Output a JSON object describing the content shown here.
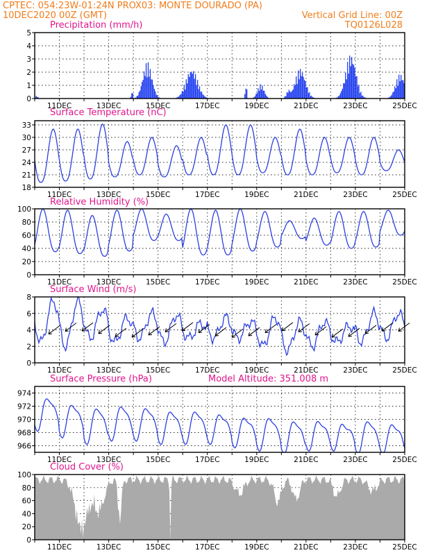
{
  "header": {
    "line1_left": "CPTEC:   054:23W-01:24N   PROX03: MONTE DOURADO (PA)",
    "line2_left": "10DEC2020 00Z (GMT)",
    "line2_right": "Vertical Grid Line: 00Z",
    "line3_right": "TQ0126L028"
  },
  "x_ticks": [
    "11DEC",
    "13DEC",
    "15DEC",
    "17DEC",
    "19DEC",
    "21DEC",
    "23DEC",
    "25DEC"
  ],
  "chart_data": [
    {
      "type": "bar",
      "title": "Precipitation (mm/h)",
      "ylim": [
        0,
        5
      ],
      "yticks": [
        "0",
        "1",
        "2",
        "3",
        "4",
        "5"
      ],
      "color": "#1f3df0",
      "x_day_range": [
        10,
        25
      ],
      "bursts": [
        {
          "center": 10.05,
          "width": 0.12,
          "peak": 0.2
        },
        {
          "center": 13.93,
          "width": 0.06,
          "peak": 0.6
        },
        {
          "center": 14.55,
          "width": 0.35,
          "peak": 2.8
        },
        {
          "center": 16.35,
          "width": 0.45,
          "peak": 2.3
        },
        {
          "center": 18.55,
          "width": 0.06,
          "peak": 1.2
        },
        {
          "center": 19.15,
          "width": 0.25,
          "peak": 1.1
        },
        {
          "center": 20.3,
          "width": 0.2,
          "peak": 0.7
        },
        {
          "center": 20.75,
          "width": 0.4,
          "peak": 2.3
        },
        {
          "center": 22.8,
          "width": 0.4,
          "peak": 3.4
        },
        {
          "center": 24.8,
          "width": 0.35,
          "peak": 1.9
        }
      ]
    },
    {
      "type": "line",
      "title": "Surface Temperature (nC)",
      "ylim": [
        18,
        34
      ],
      "yticks": [
        "18",
        "21",
        "24",
        "27",
        "30",
        "33"
      ],
      "color": "#2b3fe0",
      "x_day_range": [
        10,
        25
      ],
      "daily_max": [
        32.0,
        32.0,
        33.2,
        29.0,
        30.0,
        28.0,
        30.0,
        33.0,
        33.0,
        30.0,
        32.0,
        30.0,
        30.0,
        30.0,
        27.0
      ],
      "daily_min": [
        19.2,
        19.5,
        20.0,
        20.5,
        21.0,
        20.5,
        21.0,
        21.0,
        21.0,
        21.5,
        21.0,
        21.0,
        21.5,
        21.0,
        22.0
      ]
    },
    {
      "type": "line",
      "title": "Relative Humidity (%)",
      "ylim": [
        0,
        100
      ],
      "yticks": [
        "0",
        "20",
        "40",
        "60",
        "80",
        "100"
      ],
      "color": "#2b3fe0",
      "x_day_range": [
        10,
        25
      ],
      "daily_max": [
        100,
        98,
        90,
        98,
        100,
        92,
        100,
        98,
        100,
        96,
        82,
        86,
        96,
        96,
        98
      ],
      "daily_min": [
        35,
        32,
        28,
        36,
        52,
        52,
        30,
        30,
        36,
        42,
        55,
        45,
        40,
        42,
        60
      ]
    },
    {
      "type": "line",
      "title": "Surface Wind (m/s)",
      "ylim": [
        0,
        8
      ],
      "yticks": [
        "0",
        "2",
        "4",
        "6",
        "8"
      ],
      "color": "#2b3fe0",
      "x_day_range": [
        10,
        25
      ],
      "daily_max": [
        7.5,
        7.5,
        6.5,
        5.5,
        6.0,
        5.8,
        4.8,
        5.5,
        5.0,
        5.5,
        5.0,
        5.0,
        4.5,
        6.0,
        6.0
      ],
      "daily_min": [
        2.5,
        2.0,
        3.0,
        2.5,
        3.0,
        2.5,
        3.0,
        3.0,
        3.0,
        2.0,
        1.5,
        2.0,
        2.5,
        2.5,
        3.0
      ],
      "wind_direction_arrows": "northeasterly, pointing toward the southwest"
    },
    {
      "type": "line",
      "title": "Surface Pressure (hPa)",
      "subtitle": "Model Altitude: 351.008 m",
      "ylim": [
        965,
        975
      ],
      "yticks": [
        "966",
        "968",
        "970",
        "972",
        "974"
      ],
      "color": "#2b3fe0",
      "x_day_range": [
        10,
        25
      ],
      "daily_max": [
        973.5,
        972.5,
        972.0,
        972.3,
        972.0,
        971.5,
        971.5,
        971.0,
        970.5,
        970.5,
        970.0,
        970.0,
        969.5,
        970.0,
        969.5
      ],
      "daily_min": [
        969.0,
        968.0,
        967.0,
        967.5,
        967.5,
        967.0,
        967.0,
        967.0,
        966.5,
        966.0,
        965.5,
        966.0,
        966.0,
        965.5,
        965.5
      ]
    },
    {
      "type": "area",
      "title": "Cloud Cover (%)",
      "ylim": [
        0,
        100
      ],
      "yticks": [
        "0",
        "20",
        "40",
        "60",
        "80",
        "100"
      ],
      "color": "#aaaaaa",
      "x_day_range": [
        10,
        25
      ],
      "baseline": 92,
      "dips": [
        {
          "center": 11.9,
          "width": 0.35,
          "depth": 88
        },
        {
          "center": 12.6,
          "width": 0.3,
          "depth": 55
        },
        {
          "center": 13.45,
          "width": 0.1,
          "depth": 70
        },
        {
          "center": 15.5,
          "width": 0.03,
          "depth": 95
        },
        {
          "center": 18.3,
          "width": 0.25,
          "depth": 25
        },
        {
          "center": 19.85,
          "width": 0.2,
          "depth": 40
        },
        {
          "center": 20.6,
          "width": 0.2,
          "depth": 35
        },
        {
          "center": 22.25,
          "width": 0.2,
          "depth": 30
        },
        {
          "center": 23.7,
          "width": 0.25,
          "depth": 20
        }
      ]
    }
  ]
}
